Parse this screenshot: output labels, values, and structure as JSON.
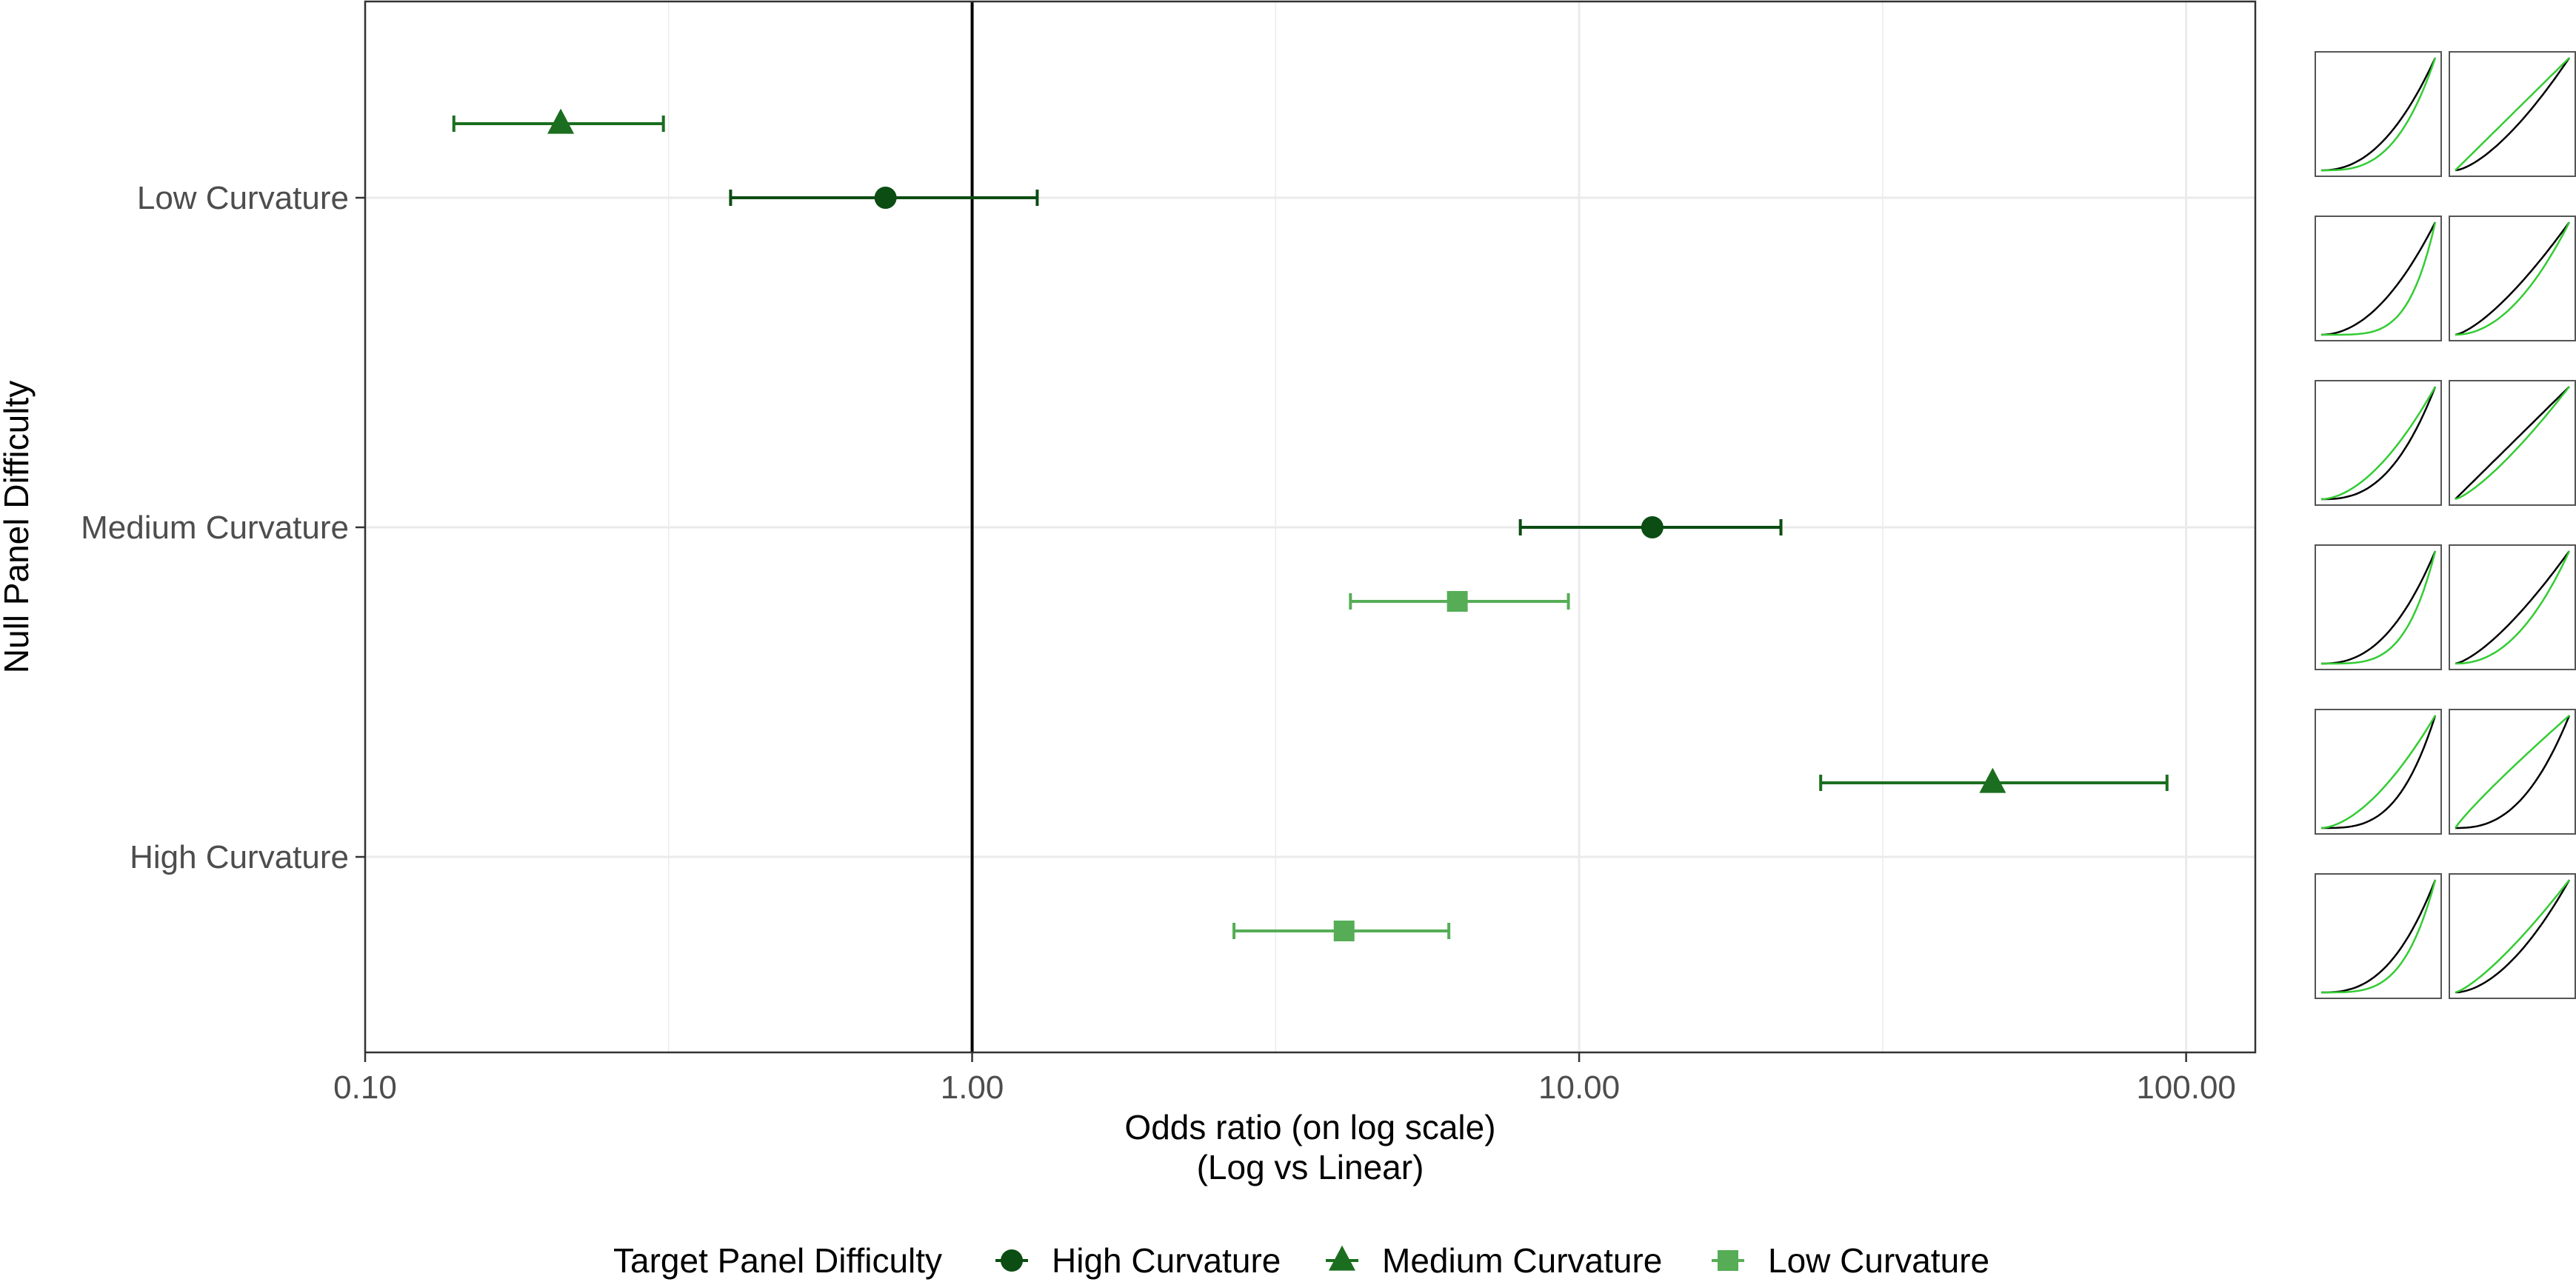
{
  "chart_data": {
    "type": "forest",
    "xlabel": [
      "Odds ratio (on log scale)",
      "(Log vs Linear)"
    ],
    "ylabel": "Null Panel Difficulty",
    "x_scale": "log10",
    "xlim": [
      0.1,
      130
    ],
    "x_ticks": [
      {
        "value": 0.1,
        "label": "0.10"
      },
      {
        "value": 1,
        "label": "1.00"
      },
      {
        "value": 10,
        "label": "10.00"
      },
      {
        "value": 100,
        "label": "100.00"
      }
    ],
    "reference_line": 1,
    "grid": true,
    "y_categories": [
      "Low Curvature",
      "Medium Curvature",
      "High Curvature"
    ],
    "legend": {
      "title": "Target Panel Difficulty",
      "position": "bottom",
      "entries": [
        {
          "label": "High Curvature",
          "shape": "circle",
          "color": "#0b4d12"
        },
        {
          "label": "Medium Curvature",
          "shape": "triangle",
          "color": "#1b6e1f"
        },
        {
          "label": "Low Curvature",
          "shape": "square",
          "color": "#56ad56"
        }
      ]
    },
    "points": [
      {
        "null": "Low Curvature",
        "target": "Medium Curvature",
        "estimate": 0.21,
        "lower": 0.14,
        "upper": 0.31
      },
      {
        "null": "Low Curvature",
        "target": "High Curvature",
        "estimate": 0.72,
        "lower": 0.4,
        "upper": 1.28
      },
      {
        "null": "Medium Curvature",
        "target": "Low Curvature",
        "estimate": 6.3,
        "lower": 4.2,
        "upper": 9.6
      },
      {
        "null": "Medium Curvature",
        "target": "High Curvature",
        "estimate": 13.2,
        "lower": 8.0,
        "upper": 21.5
      },
      {
        "null": "High Curvature",
        "target": "Low Curvature",
        "estimate": 4.1,
        "lower": 2.7,
        "upper": 6.1
      },
      {
        "null": "High Curvature",
        "target": "Medium Curvature",
        "estimate": 48.0,
        "lower": 25.0,
        "upper": 93.0
      }
    ]
  }
}
